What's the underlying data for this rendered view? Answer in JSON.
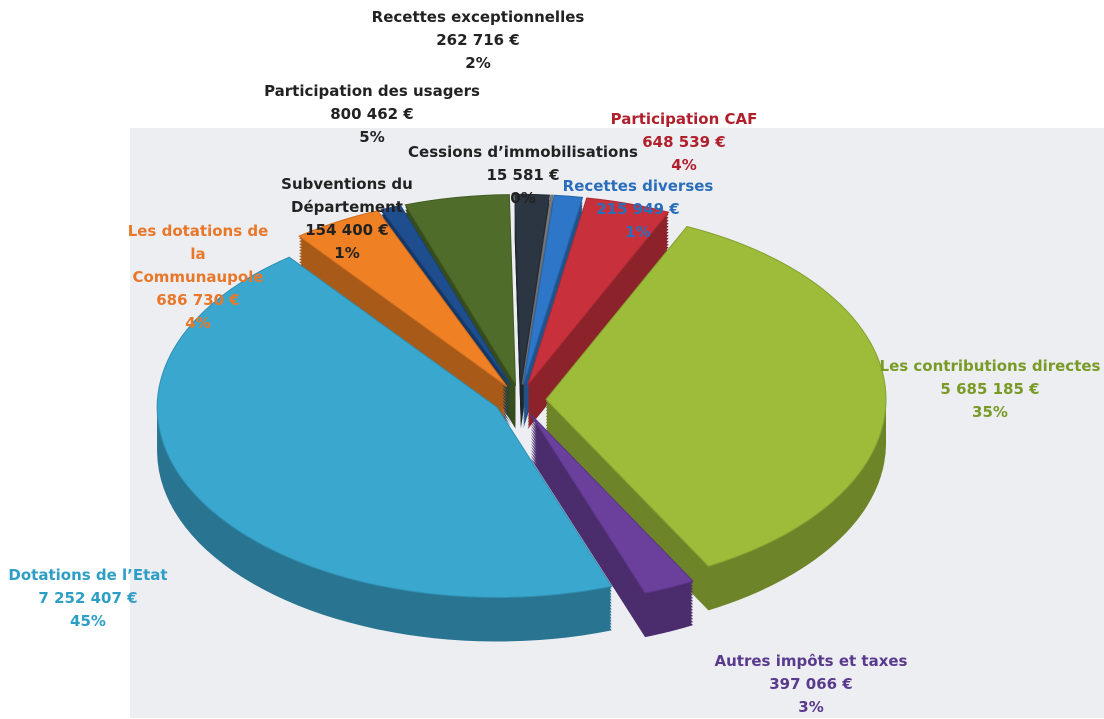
{
  "chart_data": {
    "type": "pie",
    "categories": [
      "Participation CAF",
      "Les contributions directes",
      "Autres impôts et taxes",
      "Dotations de l’Etat",
      "Les dotations de la Communaupole",
      "Subventions du Département",
      "Participation des usagers",
      "Recettes exceptionnelles",
      "Cessions d’immobilisations",
      "Recettes diverses"
    ],
    "values": [
      648539,
      5685185,
      397066,
      7252407,
      686730,
      154400,
      800462,
      262716,
      15581,
      215949
    ],
    "value_labels": [
      "648 539 €",
      "5 685 185 €",
      "397 066 €",
      "7 252 407 €",
      "686 730 €",
      "154 400 €",
      "800 462 €",
      "262 716 €",
      "15 581 €",
      "215 949 €"
    ],
    "percent_labels": [
      "4%",
      "35%",
      "3%",
      "45%",
      "4%",
      "1%",
      "5%",
      "2%",
      "0%",
      "1%"
    ],
    "colors": [
      "#c8313c",
      "#9cbc3a",
      "#6b3f9c",
      "#3aa7cf",
      "#f08024",
      "#1f4e8f",
      "#4f6c2a",
      "#2b3642",
      "#808080",
      "#2e77c8"
    ],
    "label_colors": [
      "#b0202c",
      "#7a9a26",
      "#5a3a8c",
      "#2e9ec6",
      "#e8772a",
      "#222222",
      "#222222",
      "#222222",
      "#222222",
      "#2a6ebb"
    ]
  }
}
